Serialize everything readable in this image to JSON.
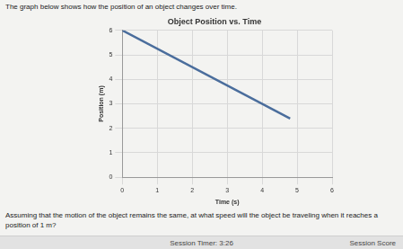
{
  "page": {
    "intro": "The graph below shows how the position of an object changes over time.",
    "question": "Assuming that the motion of the object remains the same, at what speed will the object be traveling when it reaches a position of 1 m?",
    "timer": "Session Timer: 3:26",
    "score": "Session Score"
  },
  "chart_data": {
    "type": "line",
    "title": "Object Position vs. Time",
    "x_label": "Time (s)",
    "y_label": "Position (m)",
    "x": [
      0,
      4.8
    ],
    "values": [
      6,
      2.4
    ],
    "color": "#4a6d9c",
    "xlim": [
      0,
      6
    ],
    "xticks": [
      0,
      1,
      2,
      3,
      4,
      5,
      6
    ],
    "ylim": [
      0,
      6
    ],
    "yticks": [
      0,
      1,
      2,
      3,
      4,
      5,
      6
    ],
    "grid": true
  }
}
